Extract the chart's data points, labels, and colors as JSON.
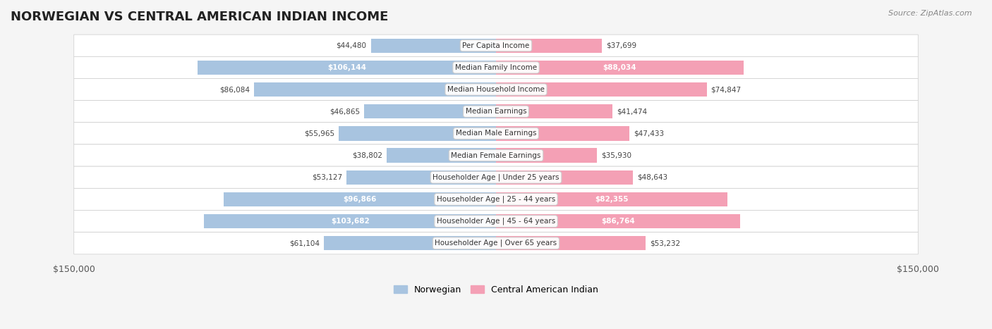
{
  "title": "NORWEGIAN VS CENTRAL AMERICAN INDIAN INCOME",
  "source": "Source: ZipAtlas.com",
  "categories": [
    "Per Capita Income",
    "Median Family Income",
    "Median Household Income",
    "Median Earnings",
    "Median Male Earnings",
    "Median Female Earnings",
    "Householder Age | Under 25 years",
    "Householder Age | 25 - 44 years",
    "Householder Age | 45 - 64 years",
    "Householder Age | Over 65 years"
  ],
  "norwegian_values": [
    44480,
    106144,
    86084,
    46865,
    55965,
    38802,
    53127,
    96866,
    103682,
    61104
  ],
  "central_american_values": [
    37699,
    88034,
    74847,
    41474,
    47433,
    35930,
    48643,
    82355,
    86764,
    53232
  ],
  "norwegian_labels": [
    "$44,480",
    "$106,144",
    "$86,084",
    "$46,865",
    "$55,965",
    "$38,802",
    "$53,127",
    "$96,866",
    "$103,682",
    "$61,104"
  ],
  "central_american_labels": [
    "$37,699",
    "$88,034",
    "$74,847",
    "$41,474",
    "$47,433",
    "$35,930",
    "$48,643",
    "$82,355",
    "$86,764",
    "$53,232"
  ],
  "norwegian_color": "#a8c4e0",
  "norwegian_color_dark": "#6aaed6",
  "central_american_color": "#f4a0b5",
  "central_american_color_dark": "#ee6688",
  "norwegian_text_threshold": 90000,
  "central_american_text_threshold": 80000,
  "max_value": 150000,
  "x_axis_labels": [
    "$150,000",
    "$150,000"
  ],
  "legend_norwegian": "Norwegian",
  "legend_central_american": "Central American Indian",
  "background_color": "#f0f0f0",
  "row_background": "#f8f8f8",
  "row_background_alt": "#ebebeb"
}
